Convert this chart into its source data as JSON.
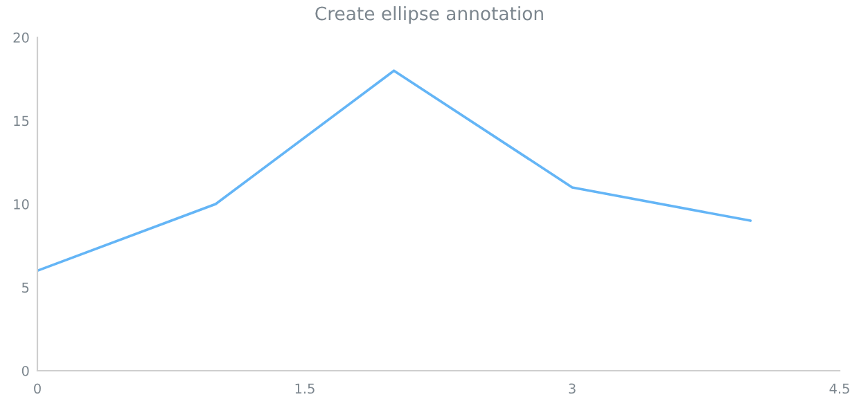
{
  "chart_data": {
    "type": "line",
    "title": "Create ellipse annotation",
    "x": [
      0,
      1,
      2,
      3,
      4
    ],
    "series": [
      {
        "color": "#64b5f6",
        "values": [
          6,
          10,
          18,
          11,
          9
        ]
      }
    ],
    "xlim": [
      0,
      4.5
    ],
    "xticks": [
      0,
      1.5,
      3,
      4.5
    ],
    "ylim": [
      0,
      20
    ],
    "yticks": [
      0,
      5,
      10,
      15,
      20
    ],
    "grid": false,
    "marker": "none",
    "line_style": "solid"
  }
}
